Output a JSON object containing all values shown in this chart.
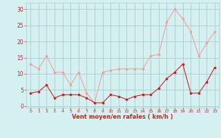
{
  "hours": [
    0,
    1,
    2,
    3,
    4,
    5,
    6,
    7,
    8,
    9,
    10,
    11,
    12,
    13,
    14,
    15,
    16,
    17,
    18,
    19,
    20,
    21,
    22,
    23
  ],
  "wind_avg": [
    4,
    4.5,
    6.5,
    2.5,
    3.5,
    3.5,
    3.5,
    2.5,
    1,
    1,
    3.5,
    3,
    2,
    3,
    3.5,
    3.5,
    5.5,
    8.5,
    10.5,
    13,
    4,
    4,
    7.5,
    12
  ],
  "wind_gust": [
    13,
    11.5,
    15.5,
    10.5,
    10.5,
    6.5,
    10.5,
    4,
    1,
    10.5,
    11,
    11.5,
    11.5,
    11.5,
    11.5,
    15.5,
    16,
    26,
    30,
    27,
    23,
    15.5,
    19.5,
    23
  ],
  "color_avg": "#cc2222",
  "color_gust": "#f0a0a0",
  "bg_color": "#d4f0f0",
  "grid_color": "#aacccc",
  "xlabel": "Vent moyen/en rafales ( km/h )",
  "yticks": [
    0,
    5,
    10,
    15,
    20,
    25,
    30
  ],
  "ylim": [
    -0.5,
    32
  ],
  "xlim": [
    -0.5,
    23.5
  ]
}
